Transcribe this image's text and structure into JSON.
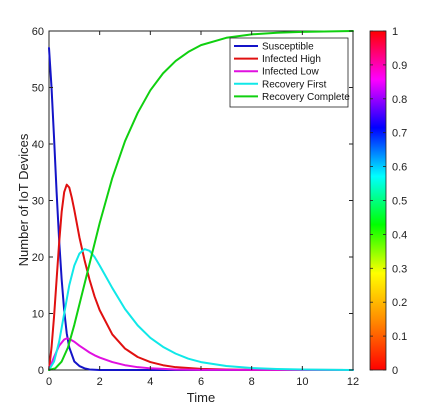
{
  "chart_data": {
    "type": "line",
    "xlabel": "Time",
    "ylabel": "Number of IoT  Devices",
    "xlim": [
      0,
      12
    ],
    "ylim": [
      0,
      60
    ],
    "xticks": [
      "0",
      "2",
      "4",
      "6",
      "8",
      "10",
      "12"
    ],
    "yticks": [
      "0",
      "10",
      "20",
      "30",
      "40",
      "50",
      "60"
    ],
    "grid": false,
    "legend_position": "top-right",
    "series": [
      {
        "name": "Susceptible",
        "color": "#1414c8",
        "x": [
          0,
          0.1,
          0.2,
          0.3,
          0.4,
          0.5,
          0.6,
          0.7,
          0.8,
          1.0,
          1.2,
          1.4,
          1.6,
          2.0,
          2.5,
          3.0,
          12
        ],
        "y": [
          57,
          50,
          41,
          31.5,
          23,
          16,
          10.5,
          6.5,
          4,
          1.5,
          0.7,
          0.3,
          0.1,
          0,
          0,
          0,
          0
        ]
      },
      {
        "name": "Infected High",
        "color": "#e01010",
        "x": [
          0,
          0.1,
          0.2,
          0.3,
          0.4,
          0.5,
          0.6,
          0.7,
          0.8,
          0.9,
          1.0,
          1.2,
          1.4,
          1.6,
          1.8,
          2.0,
          2.5,
          3.0,
          3.5,
          4.0,
          4.5,
          5.0,
          6.0,
          7.0,
          8.0,
          12
        ],
        "y": [
          0,
          4,
          9.5,
          16,
          22.5,
          28,
          31.5,
          32.8,
          32.3,
          30.5,
          28.3,
          23.5,
          19.5,
          16,
          13,
          10.6,
          6.3,
          3.8,
          2.3,
          1.4,
          0.85,
          0.5,
          0.2,
          0.08,
          0.03,
          0
        ]
      },
      {
        "name": "Infected Low",
        "color": "#e010e0",
        "x": [
          0,
          0.2,
          0.4,
          0.6,
          0.7,
          0.8,
          1.0,
          1.2,
          1.4,
          1.6,
          1.8,
          2.0,
          2.5,
          3.0,
          3.5,
          4.0,
          5.0,
          6.0,
          12
        ],
        "y": [
          0,
          2.3,
          4.3,
          5.4,
          5.6,
          5.5,
          5.0,
          4.3,
          3.7,
          3.1,
          2.6,
          2.2,
          1.4,
          0.85,
          0.5,
          0.3,
          0.1,
          0.03,
          0
        ]
      },
      {
        "name": "Recovery First",
        "color": "#10e8e8",
        "x": [
          0,
          0.2,
          0.4,
          0.6,
          0.8,
          1.0,
          1.2,
          1.4,
          1.6,
          1.8,
          2.0,
          2.2,
          2.5,
          3.0,
          3.5,
          4.0,
          4.5,
          5.0,
          5.5,
          6.0,
          7.0,
          8.0,
          9.0,
          10.0,
          12
        ],
        "y": [
          0,
          1.5,
          5,
          10,
          15,
          18.5,
          20.6,
          21.4,
          21.1,
          20,
          18.5,
          16.9,
          14.5,
          10.8,
          7.9,
          5.7,
          4.1,
          2.9,
          2.0,
          1.4,
          0.7,
          0.35,
          0.17,
          0.08,
          0
        ]
      },
      {
        "name": "Recovery Complete",
        "color": "#10d010",
        "x": [
          0,
          0.25,
          0.5,
          0.75,
          1.0,
          1.25,
          1.5,
          2.0,
          2.5,
          3.0,
          3.5,
          4.0,
          4.5,
          5.0,
          5.5,
          6.0,
          7.0,
          8.0,
          9.0,
          10.0,
          12
        ],
        "y": [
          0,
          0.3,
          1.5,
          4,
          8,
          12.5,
          17,
          26,
          34,
          40.5,
          45.5,
          49.5,
          52.5,
          54.7,
          56.3,
          57.5,
          58.8,
          59.4,
          59.7,
          59.85,
          60
        ]
      }
    ],
    "colorbar": {
      "range": [
        0,
        1
      ],
      "ticks": [
        "0",
        "0.1",
        "0.2",
        "0.3",
        "0.4",
        "0.5",
        "0.6",
        "0.7",
        "0.8",
        "0.9",
        "1"
      ],
      "stops": [
        "#ff0000",
        "#ff8800",
        "#ffff00",
        "#00ff00",
        "#00ffff",
        "#0000ff",
        "#ff00ff",
        "#ff0000"
      ]
    }
  }
}
